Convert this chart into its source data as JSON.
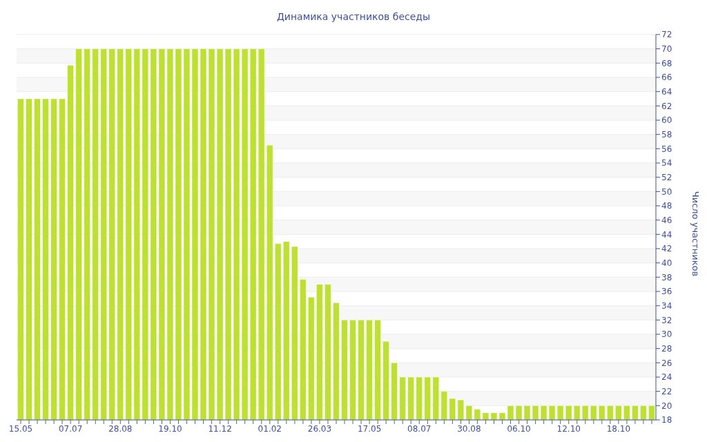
{
  "chart_data": {
    "type": "bar",
    "title": "Динамика участников беседы",
    "ylabel": "Число участников",
    "categories": [
      "15.05",
      null,
      null,
      null,
      null,
      null,
      "07.07",
      null,
      null,
      null,
      null,
      null,
      "28.08",
      null,
      null,
      null,
      null,
      null,
      "19.10",
      null,
      null,
      null,
      null,
      null,
      "11.12",
      null,
      null,
      null,
      null,
      null,
      "01.02",
      null,
      null,
      null,
      null,
      null,
      "26.03",
      null,
      null,
      null,
      null,
      null,
      "17.05",
      null,
      null,
      null,
      null,
      null,
      "08.07",
      null,
      null,
      null,
      null,
      null,
      "30.08",
      null,
      null,
      null,
      null,
      null,
      "06.10",
      null,
      null,
      null,
      null,
      null,
      "12.10",
      null,
      null,
      null,
      null,
      null,
      "18.10",
      null,
      null,
      null,
      null
    ],
    "values": [
      63,
      63,
      63,
      63,
      63,
      63,
      67.7,
      70,
      70,
      70,
      70,
      70,
      70,
      70,
      70,
      70,
      70,
      70,
      70,
      70,
      70,
      70,
      70,
      70,
      70,
      70,
      70,
      70,
      70,
      70,
      56.5,
      42.7,
      43,
      42.3,
      37.7,
      35.2,
      37,
      37,
      34.4,
      32,
      32,
      32,
      32,
      32,
      29,
      26,
      24,
      24,
      24,
      24,
      24,
      22,
      21,
      20.8,
      20,
      19.5,
      19,
      19,
      19,
      20,
      20,
      20,
      20,
      20,
      20,
      20,
      20,
      20,
      20,
      20,
      20,
      20,
      20,
      20,
      20,
      20,
      20
    ],
    "color": "#bee032",
    "ylim": [
      18,
      72
    ],
    "yticks": [
      18,
      20,
      22,
      24,
      26,
      28,
      30,
      32,
      34,
      36,
      38,
      40,
      42,
      44,
      46,
      48,
      50,
      52,
      54,
      56,
      58,
      60,
      62,
      64,
      66,
      68,
      70,
      72
    ],
    "grid": "y"
  }
}
